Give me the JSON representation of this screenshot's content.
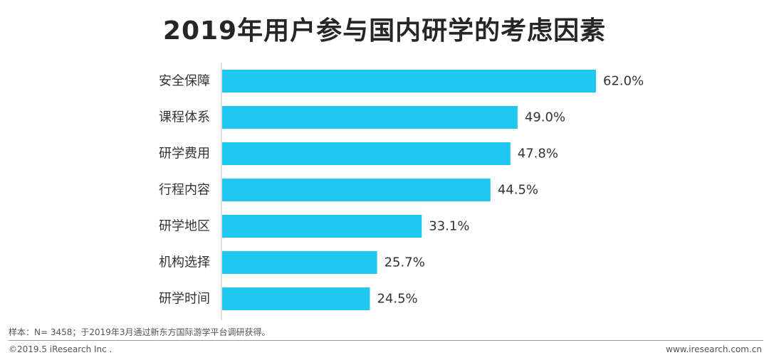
{
  "title": "2019年用户参与国内研学的考虑因素",
  "note": "样本：N= 3458；于2019年3月通过新东方国际游学平台调研获得。",
  "footer": {
    "copyright": "©2019.5 iResearch Inc .",
    "website": "www.iresearch.com.cn"
  },
  "colors": {
    "bar": "#1ec8f0",
    "axis": "#bfbfbf",
    "label": "#333333"
  },
  "chart_data": {
    "type": "bar",
    "orientation": "horizontal",
    "title": "2019年用户参与国内研学的考虑因素",
    "categories": [
      "安全保障",
      "课程体系",
      "研学费用",
      "行程内容",
      "研学地区",
      "机构选择",
      "研学时间"
    ],
    "values": [
      62.0,
      49.0,
      47.8,
      44.5,
      33.1,
      25.7,
      24.5
    ],
    "value_labels": [
      "62.0%",
      "49.0%",
      "47.8%",
      "44.5%",
      "33.1%",
      "25.7%",
      "24.5%"
    ],
    "xlim": [
      0,
      100
    ],
    "grid": false,
    "legend": "none"
  }
}
